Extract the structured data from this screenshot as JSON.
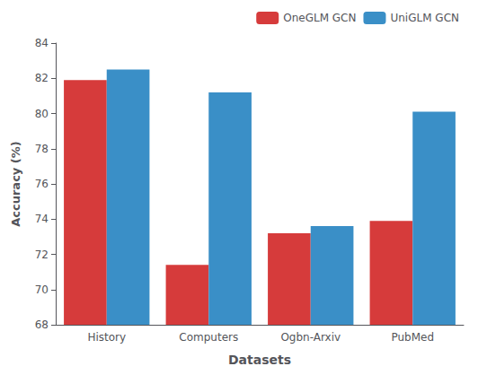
{
  "chart_data": {
    "type": "bar",
    "categories": [
      "History",
      "Computers",
      "Ogbn-Arxiv",
      "PubMed"
    ],
    "series": [
      {
        "name": "OneGLM GCN",
        "color": "#d63b3b",
        "values": [
          81.9,
          71.4,
          73.2,
          73.9
        ]
      },
      {
        "name": "UniGLM GCN",
        "color": "#3a8fc7",
        "values": [
          82.5,
          81.2,
          73.6,
          80.1
        ]
      }
    ],
    "xlabel": "Datasets",
    "ylabel": "Accuracy (%)",
    "ylim": [
      68,
      84
    ],
    "yticks": [
      68,
      70,
      72,
      74,
      76,
      78,
      80,
      82,
      84
    ],
    "grid": false,
    "legend": "upper right"
  }
}
